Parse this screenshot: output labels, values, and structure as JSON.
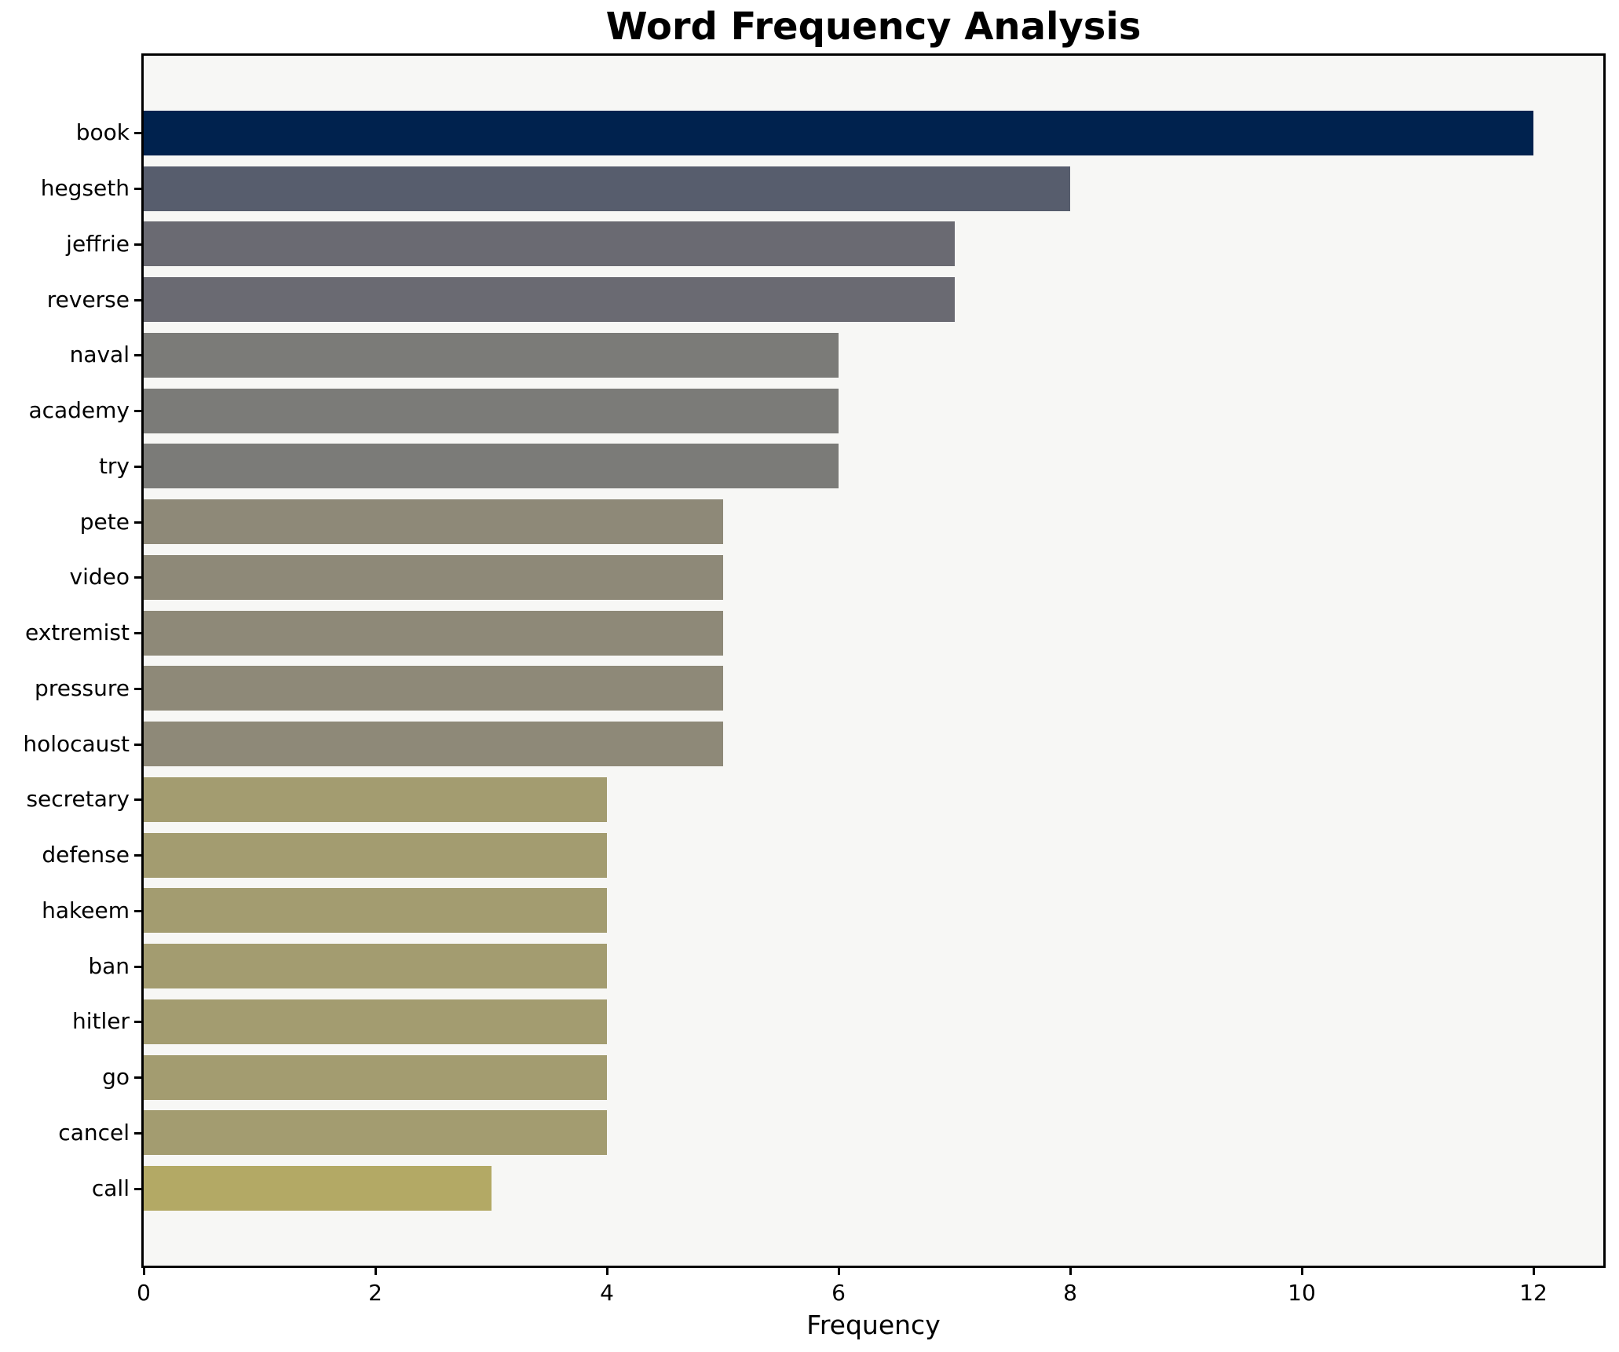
{
  "header": {
    "title": "Word Frequency Analysis"
  },
  "chart_data": {
    "type": "bar",
    "orientation": "horizontal",
    "title": "Word Frequency Analysis",
    "xlabel": "Frequency",
    "ylabel": "",
    "xlim": [
      0,
      12.6
    ],
    "xticks": [
      0,
      2,
      4,
      6,
      8,
      10,
      12
    ],
    "grid": false,
    "legend": false,
    "figure_background": "#ffffff",
    "plot_background": "#f7f7f5",
    "spine_color": "#000000",
    "bar_height_fraction": 0.8,
    "categories": [
      "book",
      "hegseth",
      "jeffrie",
      "reverse",
      "naval",
      "academy",
      "try",
      "pete",
      "video",
      "extremist",
      "pressure",
      "holocaust",
      "secretary",
      "defense",
      "hakeem",
      "ban",
      "hitler",
      "go",
      "cancel",
      "call"
    ],
    "values": [
      12,
      8,
      7,
      7,
      6,
      6,
      6,
      5,
      5,
      5,
      5,
      5,
      4,
      4,
      4,
      4,
      4,
      4,
      4,
      3
    ],
    "colors": [
      "#00224e",
      "#575d6d",
      "#6a6a72",
      "#6a6a72",
      "#7b7b78",
      "#7b7b78",
      "#7b7b78",
      "#8e8978",
      "#8e8978",
      "#8e8978",
      "#8e8978",
      "#8e8978",
      "#a39c70",
      "#a39c70",
      "#a39c70",
      "#a39c70",
      "#a39c70",
      "#a39c70",
      "#a39c70",
      "#b3a965"
    ]
  }
}
